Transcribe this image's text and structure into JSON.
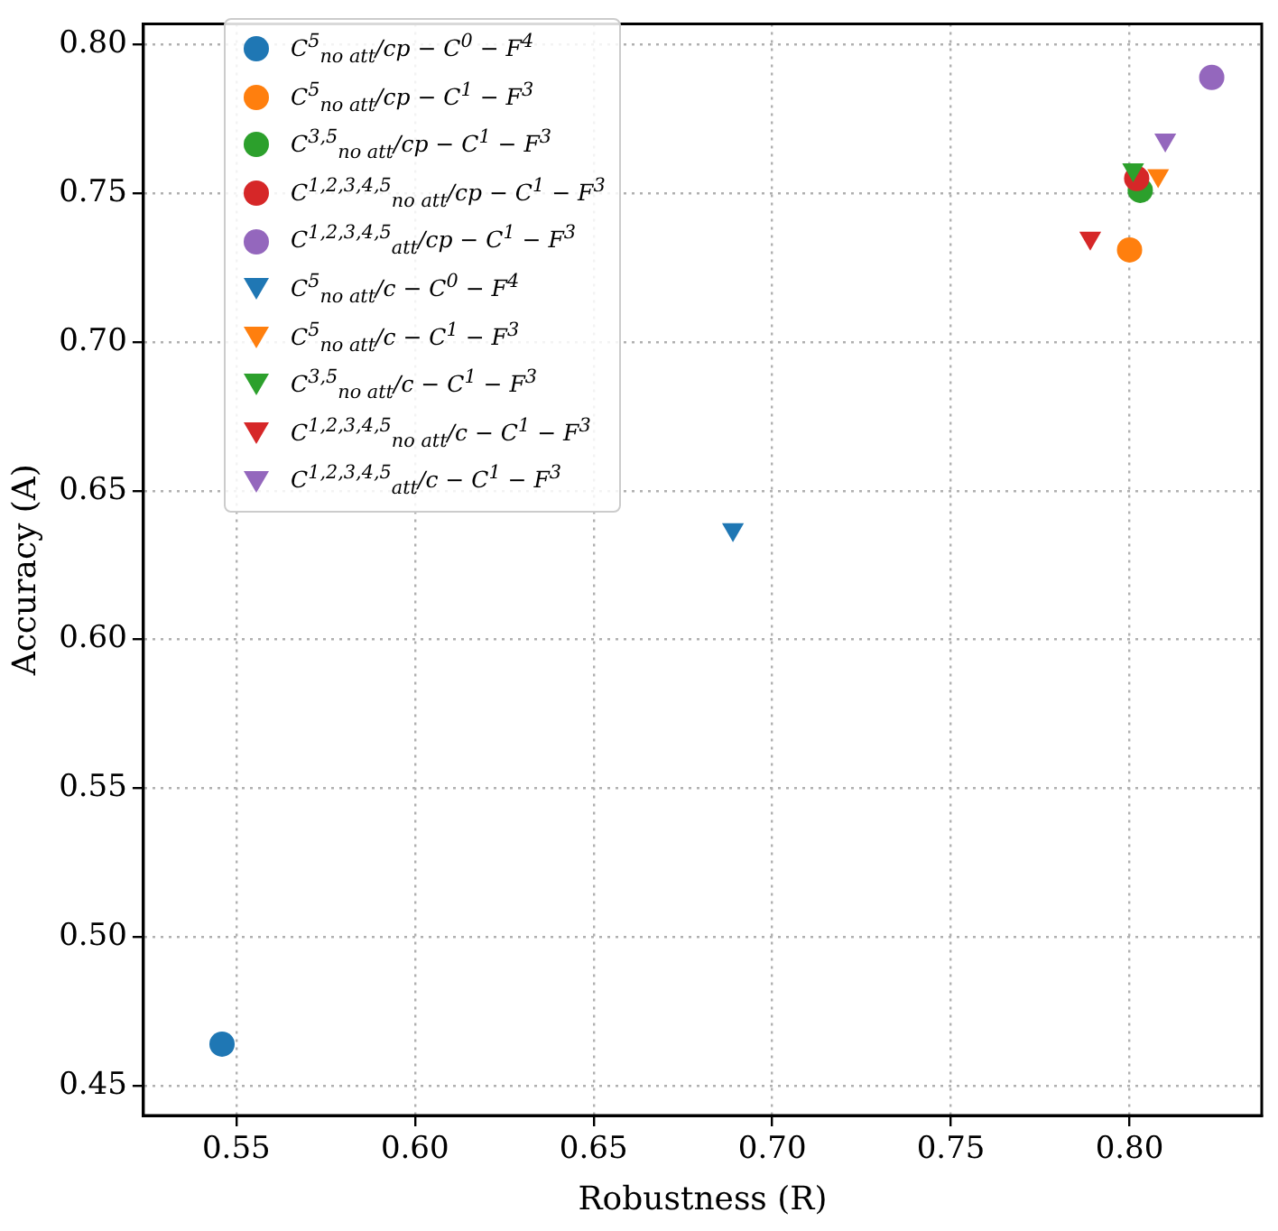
{
  "chart_data": {
    "type": "scatter",
    "xlabel": "Robustness (R)",
    "ylabel": "Accuracy (A)",
    "xlim": [
      0.524,
      0.837
    ],
    "xticks": [
      0.55,
      {
        "value": 0.6,
        "label": "0.60"
      },
      0.65,
      {
        "value": 0.7,
        "label": "0.70"
      },
      0.75,
      {
        "value": 0.8,
        "label": "0.80"
      }
    ],
    "ylim": [
      0.44,
      0.807
    ],
    "yticks": [
      0.45,
      {
        "value": 0.5,
        "label": "0.50"
      },
      0.55,
      {
        "value": 0.6,
        "label": "0.60"
      },
      0.65,
      {
        "value": 0.7,
        "label": "0.70"
      },
      0.75,
      {
        "value": 0.8,
        "label": "0.80"
      }
    ],
    "grid": true,
    "legend": "top left",
    "series": [
      {
        "name": "C$^{5}$$_{no att}$/cp − C$^{0}$ − F$^{4}$",
        "color": "#1f77b4",
        "marker": "circle",
        "x": [
          0.546
        ],
        "values": [
          0.464
        ]
      },
      {
        "name": "C$^{5}$$_{no att}$/cp − C$^{1}$ − F$^{3}$",
        "color": "#ff7f0e",
        "marker": "circle",
        "x": [
          0.8
        ],
        "values": [
          0.731
        ]
      },
      {
        "name": "C$^{3,5}$$_{no att}$/cp − C$^{1}$ − F$^{3}$",
        "color": "#2ca02c",
        "marker": "circle",
        "x": [
          0.803
        ],
        "values": [
          0.751
        ]
      },
      {
        "name": "C$^{1,2,3,4,5}$$_{no att}$/cp − C$^{1}$ − F$^{3}$",
        "color": "#d62728",
        "marker": "circle",
        "x": [
          0.802
        ],
        "values": [
          0.755
        ]
      },
      {
        "name": "C$^{1,2,3,4,5}$$_{att}$/cp − C$^{1}$ − F$^{3}$",
        "color": "#9467bd",
        "marker": "circle",
        "x": [
          0.823
        ],
        "values": [
          0.789
        ]
      },
      {
        "name": "C$^{5}$$_{no att}$/c − C$^{0}$ − F$^{4}$",
        "color": "#1f77b4",
        "marker": "triangle",
        "x": [
          0.689
        ],
        "values": [
          0.637
        ]
      },
      {
        "name": "C$^{5}$$_{no att}$/c − C$^{1}$ − F$^{3}$",
        "color": "#ff7f0e",
        "marker": "triangle",
        "x": [
          0.808
        ],
        "values": [
          0.756
        ]
      },
      {
        "name": "C$^{3,5}$$_{no att}$/c − C$^{1}$ − F$^{3}$",
        "color": "#2ca02c",
        "marker": "triangle",
        "x": [
          0.801
        ],
        "values": [
          0.758
        ]
      },
      {
        "name": "C$^{1,2,3,4,5}$$_{no att}$/c − C$^{1}$ − F$^{3}$",
        "color": "#d62728",
        "marker": "triangle",
        "x": [
          0.789
        ],
        "values": [
          0.735
        ]
      },
      {
        "name": "C$^{1,2,3,4,5}$$_{att}$/c − C$^{1}$ − F$^{3}$",
        "color": "#9467bd",
        "marker": "triangle",
        "x": [
          0.81
        ],
        "values": [
          0.768
        ]
      }
    ]
  }
}
